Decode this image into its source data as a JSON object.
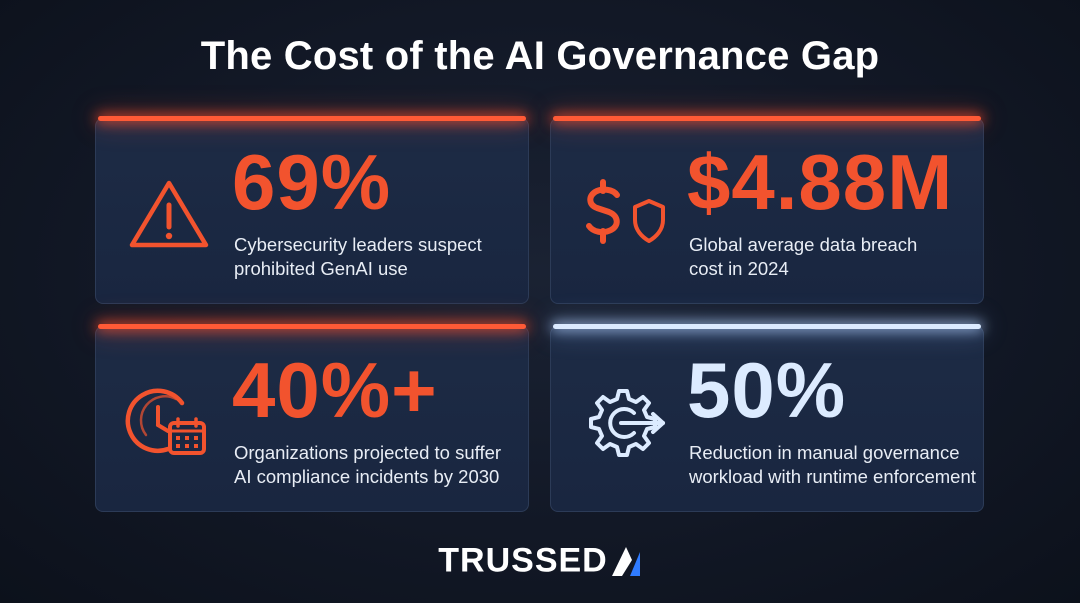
{
  "title": "The Cost of the AI Governance Gap",
  "cards": [
    {
      "value": "69%",
      "line1": "Cybersecurity leaders suspect",
      "line2": "prohibited GenAI use",
      "icon": "warning-triangle-icon",
      "accent": "#f2532e"
    },
    {
      "value": "$4.88M",
      "line1": "Global average data breach",
      "line2": "cost in 2024",
      "icon": "dollar-shield-icon",
      "accent": "#f2532e"
    },
    {
      "value": "40%+",
      "line1": "Organizations projected to suffer",
      "line2": "AI compliance incidents by 2030",
      "icon": "clock-calendar-icon",
      "accent": "#f2532e"
    },
    {
      "value": "50%",
      "line1": "Reduction in manual governance",
      "line2": "workload with runtime enforcement",
      "icon": "gear-arrow-icon",
      "accent": "#dcebff"
    }
  ],
  "logo": {
    "text": "TRUSSED",
    "mark_icon": "trussed-ai-mark-icon",
    "mark_color": "#2f7bff"
  }
}
